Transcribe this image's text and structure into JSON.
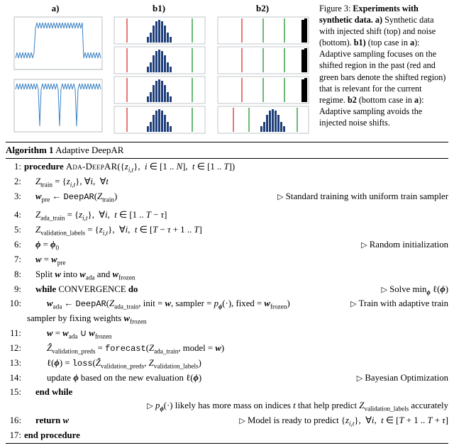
{
  "figure": {
    "labels": {
      "a": "a)",
      "b1": "b1)",
      "b2": "b2)"
    },
    "caption_html": "Figure 3: <b>Experiments with synthetic data. a)</b> Synthetic data with injected shift (top) and noise (bottom). <b>b1)</b> (top case in <b>a</b>): Adaptive sampling focuses on the shifted region in the past (red and green bars denote the shifted region) that is relevant for the current regime. <b>b2</b> (bottom case in <b>a</b>): Adaptive sampling avoids the injected noise shifts.",
    "panel_a": {
      "top_series_color": "#3b82c4",
      "bottom_series_color": "#3b82c4",
      "bg": "#ffffff",
      "border": "#9aa0a6"
    },
    "panel_b": {
      "hist_color": "#1f3f7a",
      "marker_red": "#e23b3b",
      "marker_green": "#2a9d3a",
      "border": "#9aa0a6",
      "bg": "#ffffff"
    }
  },
  "algorithm": {
    "title_prefix": "Algorithm 1",
    "title_name": "Adaptive DeepAR",
    "lines": {
      "l1_proc": "procedure",
      "l1_name": "Ada-DeepAR",
      "l1_args_html": "({<span class='math'>z</span><sub><span class='math'>i,t</span></sub>},&nbsp; <span class='math'>i</span> ∈ [1 .. <span class='math'>N</span>],&nbsp; <span class='math'>t</span> ∈ [1 .. <span class='math'>T</span>])",
      "l2_html": "<span class='math'>Z</span><sub>train</sub> = {<span class='math'>z</span><sub><span class='math'>i,t</span></sub>}, ∀<span class='math'>i</span>,&nbsp; ∀<span class='math'>t</span>",
      "l3_html": "<span class='bmath'>w</span><sub>pre</sub> ← <span class='tt'>DeepAR</span>(<span class='math'>Z</span><sub>train</sub>)",
      "l3_cmt": "Standard training with uniform train sampler",
      "l4_html": "<span class='math'>Z</span><sub>ada_train</sub> = {<span class='math'>z</span><sub><span class='math'>i,t</span></sub>},&nbsp; ∀<span class='math'>i</span>,&nbsp; <span class='math'>t</span> ∈ [1 .. <span class='math'>T</span> − <span class='math'>τ</span>]",
      "l5_html": "<span class='math'>Z</span><sub>validation_labels</sub> = {<span class='math'>z</span><sub><span class='math'>i,t</span></sub>},&nbsp; ∀<span class='math'>i</span>,&nbsp; <span class='math'>t</span> ∈ [<span class='math'>T</span> − <span class='math'>τ</span> + 1 .. <span class='math'>T</span>]",
      "l6_html": "<span class='bmath'>ϕ</span> = <span class='bmath'>ϕ</span><sub>0</sub>",
      "l6_cmt": "Random initialization",
      "l7_html": "<span class='bmath'>w</span> = <span class='bmath'>w</span><sub>pre</sub>",
      "l8_html": "Split <span class='bmath'>w</span> into <span class='bmath'>w</span><sub>ada</sub> and <span class='bmath'>w</span><sub>frozen</sub>",
      "l9_kw": "while",
      "l9_cond": "CONVERGENCE",
      "l9_do": "do",
      "l9_cmt_html": "Solve min<sub><span class='bmath'>ϕ</span></sub> ℓ(<span class='bmath'>ϕ</span>)",
      "l10_html": "<span class='bmath'>w</span><sub>ada</sub> ← <span class='tt'>DeepAR</span>(<span class='math'>Z</span><sub>ada_train</sub>, init = <span class='bmath'>w</span>, sampler = <span class='math'>p</span><sub><span class='bmath'>ϕ</span></sub>(·), fixed = <span class='bmath'>w</span><sub>frozen</sub>)",
      "l10_cmt": "Train with adaptive train",
      "l10_cont": "sampler by fixing weights <span class='bmath'>w</span><sub>frozen</sub>",
      "l11_html": "<span class='bmath'>w</span> = <span class='bmath'>w</span><sub>ada</sub> ∪ <span class='bmath'>w</span><sub>frozen</sub>",
      "l12_html": "<span class='math'>Ẑ</span><sub>validation_preds</sub> = <span class='tt'>forecast</span>(<span class='math'>Z</span><sub>ada_train</sub>, model = <span class='bmath'>w</span>)",
      "l13_html": "ℓ(<span class='bmath'>ϕ</span>) = <span class='tt'>loss</span>(<span class='math'>Ẑ</span><sub>validation_preds</sub>, <span class='math'>Z</span><sub>validation_labels</sub>)",
      "l14_html": "update <span class='bmath'>ϕ</span> based on the new evaluation ℓ(<span class='bmath'>ϕ</span>)",
      "l14_cmt": "Bayesian Optimization",
      "l15_kw": "end while",
      "l15b_cmt_html": "<span class='math'>p</span><sub><span class='bmath'>ϕ</span></sub>(·) likely has more mass on indices <span class='math'>t</span> that help predict <span class='math'>Z</span><sub>validation_labels</sub> accurately",
      "l16_kw": "return",
      "l16_arg": "<span class='bmath'>w</span>",
      "l16_cmt_html": "Model is ready to predict {<span class='math'>z</span><sub><span class='math'>i,t</span></sub>},&nbsp; ∀<span class='math'>i</span>,&nbsp; <span class='math'>t</span> ∈ [<span class='math'>T</span> + 1 .. <span class='math'>T</span> + <span class='math'>τ</span>]",
      "l17_kw": "end procedure"
    }
  }
}
